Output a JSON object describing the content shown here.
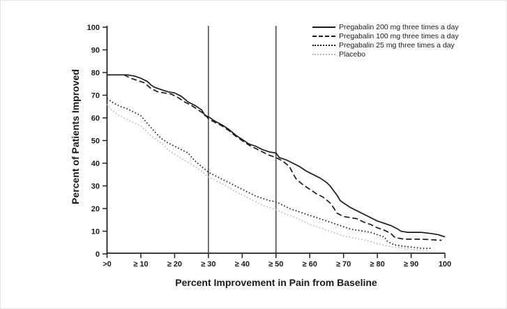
{
  "chart": {
    "background": "#ffffff",
    "axis_color": "#222222",
    "ink_color": "#1a1a1a",
    "placebo_color": "#b8b8b8"
  },
  "chart_data": {
    "type": "line",
    "title": "",
    "xlabel": "Percent Improvement in Pain from Baseline",
    "ylabel": "Percent of Patients Improved",
    "xlim": [
      0,
      100
    ],
    "ylim": [
      0,
      100
    ],
    "grid": false,
    "legend_position": "top-right",
    "x_ticks": [
      0,
      10,
      20,
      30,
      40,
      50,
      60,
      70,
      80,
      90,
      100
    ],
    "x_tick_labels": [
      ">0",
      "≥ 10",
      "≥ 20",
      "≥ 30",
      "≥ 40",
      "≥ 50",
      "≥ 60",
      "≥ 70",
      "≥ 80",
      "≥ 90",
      "100"
    ],
    "y_ticks": [
      0,
      10,
      20,
      30,
      40,
      50,
      60,
      70,
      80,
      90,
      100
    ],
    "y_tick_labels": [
      "0",
      "10",
      "20",
      "30",
      "40",
      "50",
      "60",
      "70",
      "80",
      "90",
      "100"
    ],
    "reference_lines_x": [
      30,
      50
    ],
    "series": [
      {
        "name": "Pregabalin 200 mg three times a day",
        "style": "solid",
        "color": "#1a1a1a",
        "points": [
          [
            0,
            79
          ],
          [
            6,
            79
          ],
          [
            8,
            78.5
          ],
          [
            10,
            77.5
          ],
          [
            12,
            76
          ],
          [
            13,
            74.5
          ],
          [
            14,
            73.5
          ],
          [
            16,
            72.5
          ],
          [
            18,
            71.5
          ],
          [
            20,
            71
          ],
          [
            22,
            69.5
          ],
          [
            24,
            67
          ],
          [
            26,
            65.5
          ],
          [
            28,
            63.5
          ],
          [
            29,
            61
          ],
          [
            30,
            60.5
          ],
          [
            32,
            58.5
          ],
          [
            34,
            57
          ],
          [
            36,
            55
          ],
          [
            38,
            52.5
          ],
          [
            40,
            50.5
          ],
          [
            42,
            48.5
          ],
          [
            44,
            47.5
          ],
          [
            46,
            46
          ],
          [
            48,
            45
          ],
          [
            50,
            44.5
          ],
          [
            51,
            42.5
          ],
          [
            53,
            41.5
          ],
          [
            55,
            40
          ],
          [
            57,
            38.5
          ],
          [
            59,
            36.5
          ],
          [
            61,
            35
          ],
          [
            63,
            33.5
          ],
          [
            65,
            31.5
          ],
          [
            66,
            30
          ],
          [
            67,
            28
          ],
          [
            68,
            26
          ],
          [
            69,
            23.5
          ],
          [
            70,
            22.5
          ],
          [
            72,
            20.5
          ],
          [
            74,
            19
          ],
          [
            76,
            17.5
          ],
          [
            78,
            16
          ],
          [
            80,
            14.5
          ],
          [
            82,
            13.5
          ],
          [
            84,
            12.5
          ],
          [
            86,
            11
          ],
          [
            87,
            10
          ],
          [
            89,
            9.5
          ],
          [
            93,
            9.5
          ],
          [
            96,
            9
          ],
          [
            98,
            8.5
          ],
          [
            100,
            7.5
          ]
        ]
      },
      {
        "name": "Pregabalin 100 mg three times a day",
        "style": "dashed",
        "color": "#1a1a1a",
        "points": [
          [
            0,
            79
          ],
          [
            5,
            79
          ],
          [
            7,
            77.5
          ],
          [
            9,
            76.5
          ],
          [
            11,
            75.5
          ],
          [
            13,
            73
          ],
          [
            15,
            71.5
          ],
          [
            17,
            71
          ],
          [
            19,
            70.5
          ],
          [
            21,
            69
          ],
          [
            23,
            67
          ],
          [
            25,
            65.5
          ],
          [
            27,
            63.5
          ],
          [
            29,
            61.5
          ],
          [
            30,
            59.5
          ],
          [
            32,
            58
          ],
          [
            34,
            56.5
          ],
          [
            36,
            54.5
          ],
          [
            38,
            52
          ],
          [
            40,
            50
          ],
          [
            42,
            48
          ],
          [
            44,
            46.5
          ],
          [
            46,
            45
          ],
          [
            48,
            43.5
          ],
          [
            50,
            42.5
          ],
          [
            52,
            41
          ],
          [
            54,
            38.5
          ],
          [
            55,
            35.5
          ],
          [
            56,
            33
          ],
          [
            58,
            30.5
          ],
          [
            60,
            28.5
          ],
          [
            62,
            26.5
          ],
          [
            64,
            25
          ],
          [
            66,
            22.5
          ],
          [
            67,
            20.5
          ],
          [
            68,
            18
          ],
          [
            70,
            16.5
          ],
          [
            72,
            16
          ],
          [
            74,
            15.5
          ],
          [
            76,
            14
          ],
          [
            78,
            13
          ],
          [
            80,
            11.5
          ],
          [
            82,
            10.5
          ],
          [
            84,
            9
          ],
          [
            85,
            7.5
          ],
          [
            86,
            7
          ],
          [
            88,
            6.5
          ],
          [
            93,
            6.5
          ],
          [
            99,
            6
          ]
        ]
      },
      {
        "name": "Pregabalin 25 mg three times a day",
        "style": "dotted",
        "color": "#1a1a1a",
        "points": [
          [
            0,
            68.5
          ],
          [
            2,
            66.5
          ],
          [
            4,
            65
          ],
          [
            6,
            64
          ],
          [
            8,
            62.5
          ],
          [
            10,
            61
          ],
          [
            12,
            57.5
          ],
          [
            14,
            54
          ],
          [
            16,
            51
          ],
          [
            18,
            49
          ],
          [
            20,
            47.5
          ],
          [
            22,
            46
          ],
          [
            24,
            44.5
          ],
          [
            26,
            41
          ],
          [
            28,
            38.5
          ],
          [
            30,
            36
          ],
          [
            32,
            34.5
          ],
          [
            34,
            33
          ],
          [
            36,
            31.5
          ],
          [
            38,
            30
          ],
          [
            40,
            28.5
          ],
          [
            42,
            27
          ],
          [
            44,
            25.5
          ],
          [
            46,
            24.5
          ],
          [
            48,
            23.5
          ],
          [
            50,
            23
          ],
          [
            52,
            21.5
          ],
          [
            54,
            20
          ],
          [
            56,
            19
          ],
          [
            58,
            18
          ],
          [
            60,
            17
          ],
          [
            62,
            16
          ],
          [
            64,
            15
          ],
          [
            66,
            14
          ],
          [
            68,
            13
          ],
          [
            70,
            12
          ],
          [
            72,
            11
          ],
          [
            74,
            10.5
          ],
          [
            76,
            10
          ],
          [
            78,
            9.5
          ],
          [
            80,
            8.5
          ],
          [
            82,
            7.5
          ],
          [
            83,
            5.5
          ],
          [
            85,
            4
          ],
          [
            87,
            3.5
          ],
          [
            90,
            3
          ],
          [
            93,
            2.5
          ],
          [
            96,
            2.5
          ]
        ]
      },
      {
        "name": "Placebo",
        "style": "dotted",
        "color": "#b8b8b8",
        "points": [
          [
            0,
            66
          ],
          [
            1,
            64
          ],
          [
            3,
            61.5
          ],
          [
            5,
            60
          ],
          [
            7,
            58.5
          ],
          [
            10,
            56.5
          ],
          [
            12,
            53.5
          ],
          [
            14,
            51
          ],
          [
            16,
            49
          ],
          [
            18,
            46
          ],
          [
            20,
            44
          ],
          [
            22,
            42
          ],
          [
            24,
            40.5
          ],
          [
            26,
            38.5
          ],
          [
            28,
            36.5
          ],
          [
            30,
            34
          ],
          [
            32,
            32.5
          ],
          [
            34,
            31
          ],
          [
            36,
            29.5
          ],
          [
            38,
            27.5
          ],
          [
            40,
            26
          ],
          [
            42,
            24.5
          ],
          [
            44,
            23
          ],
          [
            46,
            21.5
          ],
          [
            48,
            20.5
          ],
          [
            50,
            19.5
          ],
          [
            53,
            17.5
          ],
          [
            55,
            16.5
          ],
          [
            58,
            14.5
          ],
          [
            60,
            13
          ],
          [
            63,
            11.5
          ],
          [
            65,
            10.5
          ],
          [
            68,
            9
          ],
          [
            70,
            8
          ],
          [
            73,
            7
          ],
          [
            75,
            6.5
          ],
          [
            78,
            5.5
          ],
          [
            80,
            4.5
          ],
          [
            83,
            3.5
          ],
          [
            85,
            3
          ],
          [
            88,
            2.5
          ],
          [
            90,
            2
          ],
          [
            95,
            1.5
          ]
        ]
      }
    ]
  }
}
